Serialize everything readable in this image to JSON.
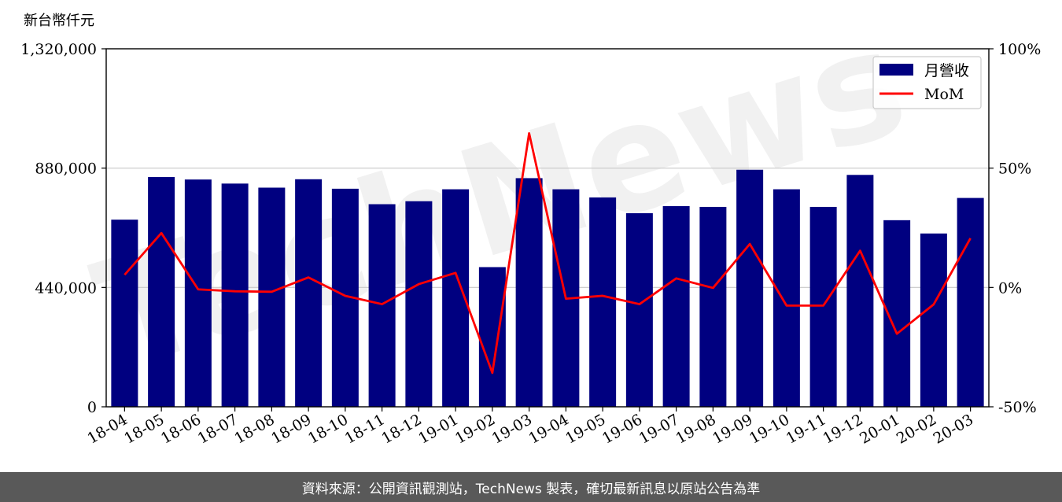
{
  "chart_data": {
    "type": "bar",
    "unit_label": "新台幣仟元",
    "categories": [
      "18-04",
      "18-05",
      "18-06",
      "18-07",
      "18-08",
      "18-09",
      "18-10",
      "18-11",
      "18-12",
      "19-01",
      "19-02",
      "19-03",
      "19-04",
      "19-05",
      "19-06",
      "19-07",
      "19-08",
      "19-09",
      "19-10",
      "19-11",
      "19-12",
      "20-01",
      "20-02",
      "20-03"
    ],
    "series": [
      {
        "name": "月營收",
        "axis": "left",
        "type": "bar",
        "color": "#000080",
        "values": [
          690000,
          847000,
          838000,
          823000,
          808000,
          839000,
          804000,
          747000,
          758000,
          802000,
          515000,
          843000,
          802000,
          772000,
          714000,
          740000,
          737000,
          874000,
          802000,
          737000,
          855000,
          688000,
          639000,
          770000
        ]
      },
      {
        "name": "MoM",
        "axis": "right",
        "type": "line",
        "color": "#ff0000",
        "values": [
          5.3,
          22.8,
          -0.8,
          -1.6,
          -1.8,
          4.2,
          -3.5,
          -7.0,
          1.4,
          6.1,
          -35.8,
          64.6,
          -4.7,
          -3.5,
          -7.0,
          3.8,
          -0.2,
          18.2,
          -7.6,
          -7.6,
          15.4,
          -19.4,
          -7.1,
          20.6
        ]
      }
    ],
    "ylim_left": [
      0,
      1320000
    ],
    "yticks_left": [
      "0",
      "440,000",
      "880,000",
      "1,320,000"
    ],
    "ylim_right": [
      -50,
      100
    ],
    "yticks_right": [
      "-50%",
      "0%",
      "50%",
      "100%"
    ],
    "grid": "horizontal",
    "legend_position": "top-right"
  },
  "watermark": "TechNews",
  "footer_text": "資料來源：公開資訊觀測站，TechNews 製表，確切最新訊息以原站公告為準"
}
